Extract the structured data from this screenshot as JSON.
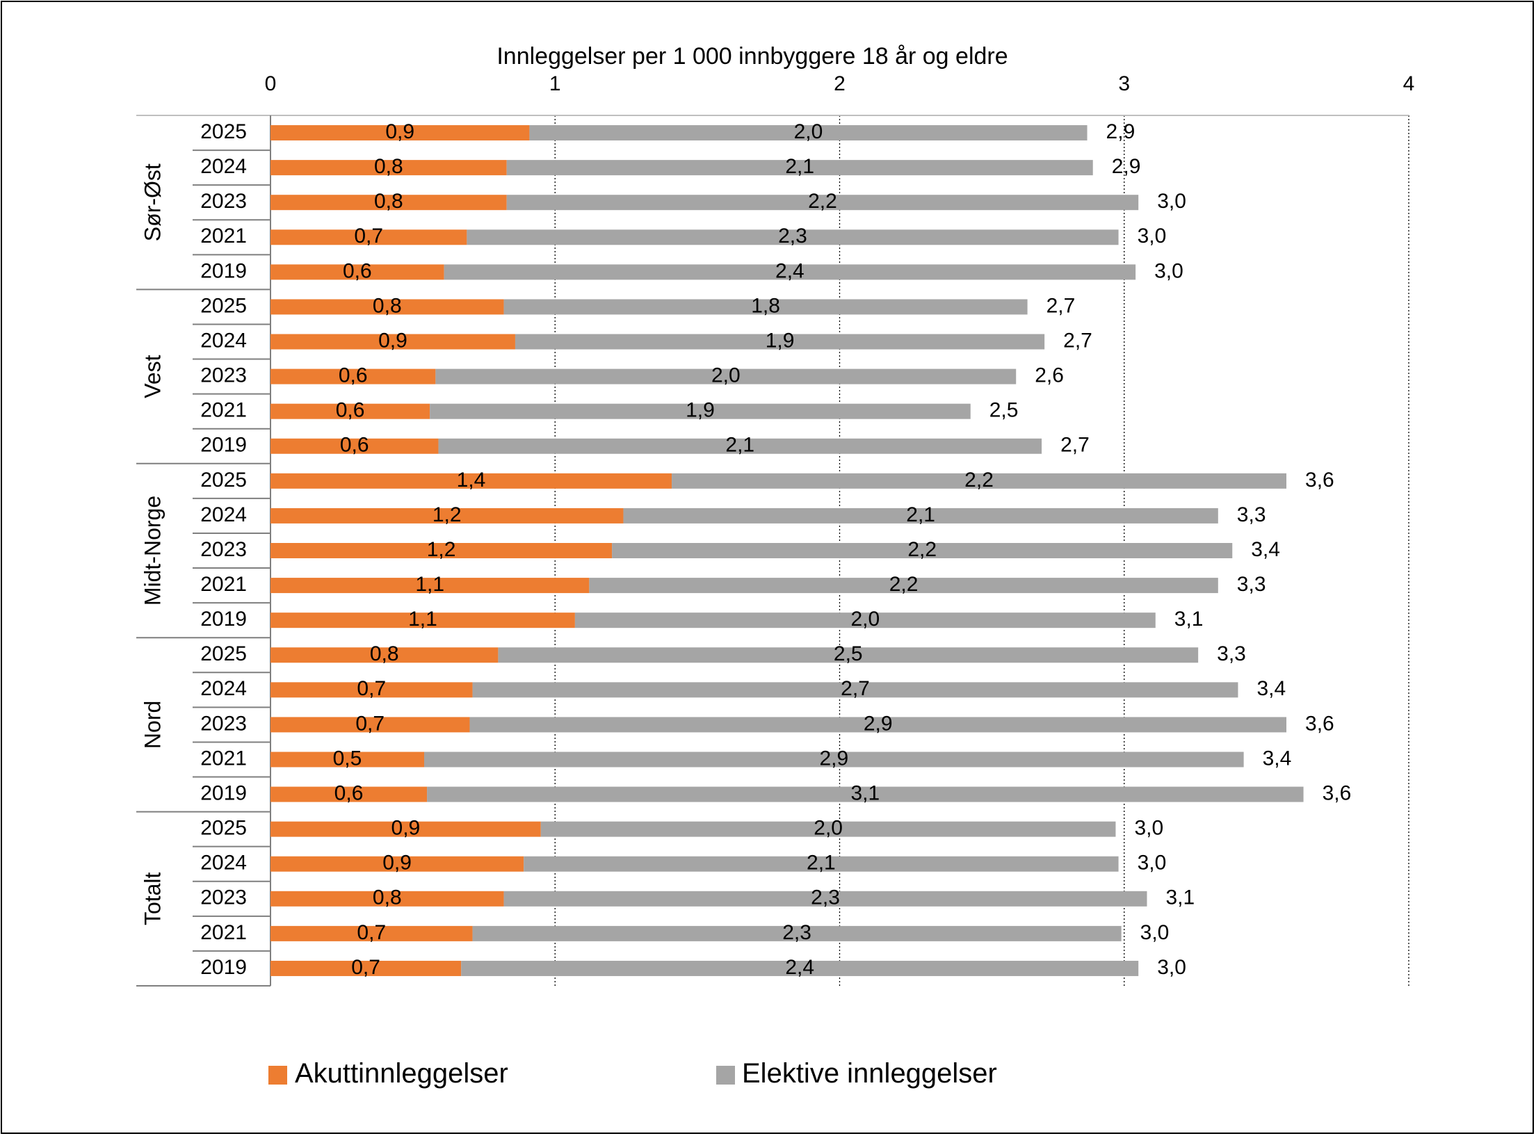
{
  "chart_data": {
    "type": "bar",
    "orientation": "horizontal",
    "stacked": true,
    "xlabel": "Innleggelser per 1 000 innbyggere 18 år og eldre",
    "xlim": [
      0,
      4
    ],
    "xticks": [
      "0",
      "1",
      "2",
      "3",
      "4"
    ],
    "grid": "vertical dotted",
    "legend_position": "bottom",
    "colors": {
      "akutt": "#ED7D31",
      "elektive": "#A5A5A5"
    },
    "series": [
      {
        "name": "Akuttinnleggelser",
        "key": "akutt"
      },
      {
        "name": "Elektive innleggelser",
        "key": "elektive"
      }
    ],
    "groups": [
      {
        "name": "Sør-Øst",
        "rows": [
          {
            "year": "2025",
            "akutt": 0.91,
            "elektive": 1.96,
            "akutt_label": "0,9",
            "elektive_label": "2,0",
            "total_label": "2,9"
          },
          {
            "year": "2024",
            "akutt": 0.83,
            "elektive": 2.06,
            "akutt_label": "0,8",
            "elektive_label": "2,1",
            "total_label": "2,9"
          },
          {
            "year": "2023",
            "akutt": 0.83,
            "elektive": 2.22,
            "akutt_label": "0,8",
            "elektive_label": "2,2",
            "total_label": "3,0"
          },
          {
            "year": "2021",
            "akutt": 0.69,
            "elektive": 2.29,
            "akutt_label": "0,7",
            "elektive_label": "2,3",
            "total_label": "3,0"
          },
          {
            "year": "2019",
            "akutt": 0.61,
            "elektive": 2.43,
            "akutt_label": "0,6",
            "elektive_label": "2,4",
            "total_label": "3,0"
          }
        ]
      },
      {
        "name": "Vest",
        "rows": [
          {
            "year": "2025",
            "akutt": 0.82,
            "elektive": 1.84,
            "akutt_label": "0,8",
            "elektive_label": "1,8",
            "total_label": "2,7"
          },
          {
            "year": "2024",
            "akutt": 0.86,
            "elektive": 1.86,
            "akutt_label": "0,9",
            "elektive_label": "1,9",
            "total_label": "2,7"
          },
          {
            "year": "2023",
            "akutt": 0.58,
            "elektive": 2.04,
            "akutt_label": "0,6",
            "elektive_label": "2,0",
            "total_label": "2,6"
          },
          {
            "year": "2021",
            "akutt": 0.56,
            "elektive": 1.9,
            "akutt_label": "0,6",
            "elektive_label": "1,9",
            "total_label": "2,5"
          },
          {
            "year": "2019",
            "akutt": 0.59,
            "elektive": 2.12,
            "akutt_label": "0,6",
            "elektive_label": "2,1",
            "total_label": "2,7"
          }
        ]
      },
      {
        "name": "Midt-Norge",
        "rows": [
          {
            "year": "2025",
            "akutt": 1.41,
            "elektive": 2.16,
            "akutt_label": "1,4",
            "elektive_label": "2,2",
            "total_label": "3,6"
          },
          {
            "year": "2024",
            "akutt": 1.24,
            "elektive": 2.09,
            "akutt_label": "1,2",
            "elektive_label": "2,1",
            "total_label": "3,3"
          },
          {
            "year": "2023",
            "akutt": 1.2,
            "elektive": 2.18,
            "akutt_label": "1,2",
            "elektive_label": "2,2",
            "total_label": "3,4"
          },
          {
            "year": "2021",
            "akutt": 1.12,
            "elektive": 2.21,
            "akutt_label": "1,1",
            "elektive_label": "2,2",
            "total_label": "3,3"
          },
          {
            "year": "2019",
            "akutt": 1.07,
            "elektive": 2.04,
            "akutt_label": "1,1",
            "elektive_label": "2,0",
            "total_label": "3,1"
          }
        ]
      },
      {
        "name": "Nord",
        "rows": [
          {
            "year": "2025",
            "akutt": 0.8,
            "elektive": 2.46,
            "akutt_label": "0,8",
            "elektive_label": "2,5",
            "total_label": "3,3"
          },
          {
            "year": "2024",
            "akutt": 0.71,
            "elektive": 2.69,
            "akutt_label": "0,7",
            "elektive_label": "2,7",
            "total_label": "3,4"
          },
          {
            "year": "2023",
            "akutt": 0.7,
            "elektive": 2.87,
            "akutt_label": "0,7",
            "elektive_label": "2,9",
            "total_label": "3,6"
          },
          {
            "year": "2021",
            "akutt": 0.54,
            "elektive": 2.88,
            "akutt_label": "0,5",
            "elektive_label": "2,9",
            "total_label": "3,4"
          },
          {
            "year": "2019",
            "akutt": 0.55,
            "elektive": 3.08,
            "akutt_label": "0,6",
            "elektive_label": "3,1",
            "total_label": "3,6"
          }
        ]
      },
      {
        "name": "Totalt",
        "rows": [
          {
            "year": "2025",
            "akutt": 0.95,
            "elektive": 2.02,
            "akutt_label": "0,9",
            "elektive_label": "2,0",
            "total_label": "3,0"
          },
          {
            "year": "2024",
            "akutt": 0.89,
            "elektive": 2.09,
            "akutt_label": "0,9",
            "elektive_label": "2,1",
            "total_label": "3,0"
          },
          {
            "year": "2023",
            "akutt": 0.82,
            "elektive": 2.26,
            "akutt_label": "0,8",
            "elektive_label": "2,3",
            "total_label": "3,1"
          },
          {
            "year": "2021",
            "akutt": 0.71,
            "elektive": 2.28,
            "akutt_label": "0,7",
            "elektive_label": "2,3",
            "total_label": "3,0"
          },
          {
            "year": "2019",
            "akutt": 0.67,
            "elektive": 2.38,
            "akutt_label": "0,7",
            "elektive_label": "2,4",
            "total_label": "3,0"
          }
        ]
      }
    ]
  }
}
